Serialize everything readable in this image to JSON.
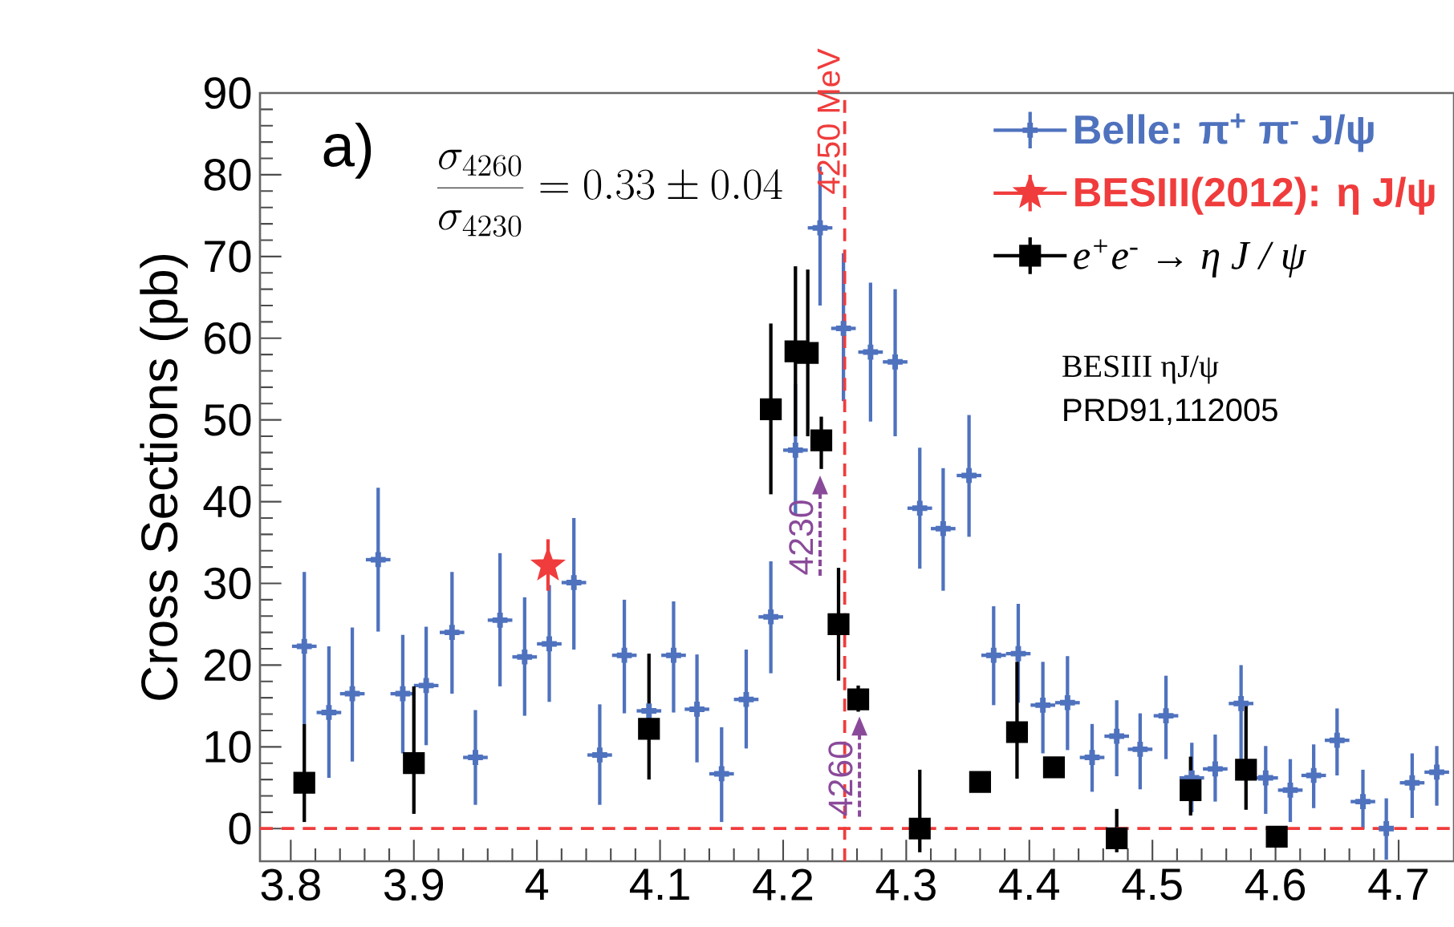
{
  "chart_data": {
    "type": "scatter",
    "ylabel": "Cross Sections (pb)",
    "xlim": [
      3.775,
      4.745
    ],
    "ylim": [
      -4,
      90
    ],
    "xticks": [
      3.8,
      3.9,
      4,
      4.1,
      4.2,
      4.3,
      4.4,
      4.5,
      4.6,
      4.7
    ],
    "yticks": [
      0,
      10,
      20,
      30,
      40,
      50,
      60,
      70,
      80,
      90
    ],
    "legend": "top right",
    "annotations": [
      "a)",
      "\\frac{\\sigma_{4260}}{\\sigma_{4230}}=0.33\\pm 0.04",
      "BESIII ηJ/ψ",
      "PRD91,112005",
      {
        "text": "4230",
        "x": 4.23,
        "y": 43.5
      },
      {
        "text": "4260",
        "x": 4.262,
        "y": 14
      }
    ],
    "ref_lines": [
      {
        "axis": "x",
        "value": 4.25,
        "label": "4250 MeV",
        "color": "#f03c3c",
        "line_style": "dashed"
      },
      {
        "axis": "y",
        "value": 0,
        "color": "#f03c3c",
        "line_style": "dashed"
      }
    ],
    "series": [
      {
        "name": "Belle: π$^{+}$ π$^{-}$ J/ψ",
        "color": "#4f72be",
        "marker": "cross",
        "x": [
          3.811,
          3.831,
          3.85,
          3.871,
          3.891,
          3.91,
          3.931,
          3.95,
          3.97,
          3.99,
          4.01,
          4.03,
          4.051,
          4.071,
          4.091,
          4.111,
          4.13,
          4.15,
          4.17,
          4.19,
          4.21,
          4.23,
          4.249,
          4.271,
          4.291,
          4.311,
          4.33,
          4.351,
          4.371,
          4.391,
          4.411,
          4.431,
          4.451,
          4.471,
          4.49,
          4.511,
          4.532,
          4.551,
          4.572,
          4.592,
          4.612,
          4.631,
          4.65,
          4.671,
          4.69,
          4.711,
          4.731
        ],
        "values": [
          22.3,
          14.2,
          16.5,
          32.9,
          16.5,
          17.5,
          24.0,
          8.7,
          25.5,
          21.0,
          22.6,
          30.1,
          9.0,
          21.2,
          14.4,
          21.2,
          14.6,
          6.7,
          15.8,
          25.9,
          46.3,
          73.5,
          61.2,
          58.3,
          57.1,
          39.2,
          36.7,
          43.2,
          21.2,
          21.4,
          15.1,
          15.4,
          8.7,
          11.3,
          9.7,
          13.8,
          6.2,
          7.3,
          15.3,
          6.2,
          4.7,
          6.5,
          10.8,
          3.3,
          0.0,
          5.6,
          6.9
        ],
        "errors": [
          [
            12.8,
            31.4
          ],
          [
            6.2,
            22.3
          ],
          [
            8.2,
            24.6
          ],
          [
            24.1,
            41.7
          ],
          [
            9.2,
            23.7
          ],
          [
            10.2,
            24.7
          ],
          [
            16.5,
            31.4
          ],
          [
            2.9,
            14.5
          ],
          [
            17.4,
            33.7
          ],
          [
            13.8,
            28.3
          ],
          [
            15.5,
            29.8
          ],
          [
            21.9,
            38.0
          ],
          [
            2.9,
            15.2
          ],
          [
            14.1,
            28.0
          ],
          null,
          [
            14.2,
            27.8
          ],
          [
            8.1,
            21.3
          ],
          [
            0.8,
            12.4
          ],
          [
            9.8,
            21.9
          ],
          [
            19.0,
            32.7
          ],
          [
            38.4,
            54.4
          ],
          [
            64.0,
            81.0
          ],
          [
            52.3,
            70.4
          ],
          [
            49.8,
            66.8
          ],
          [
            48.0,
            66.0
          ],
          [
            31.8,
            46.6
          ],
          [
            29.1,
            44.1
          ],
          [
            35.7,
            50.6
          ],
          [
            15.1,
            27.2
          ],
          [
            15.4,
            27.5
          ],
          [
            9.2,
            20.4
          ],
          [
            9.6,
            21.1
          ],
          [
            4.5,
            12.8
          ],
          [
            6.4,
            15.7
          ],
          [
            4.8,
            14.1
          ],
          [
            8.5,
            18.7
          ],
          [
            2.0,
            10.5
          ],
          [
            3.3,
            11.5
          ],
          [
            8.3,
            20.0
          ],
          [
            1.8,
            10.1
          ],
          [
            0.8,
            8.5
          ],
          [
            2.5,
            10.3
          ],
          [
            6.5,
            14.7
          ],
          [
            -0.1,
            7.2
          ],
          [
            -3.8,
            3.7
          ],
          [
            1.3,
            9.2
          ],
          [
            2.8,
            10.1
          ]
        ],
        "xerrors": [
          0.01,
          0.01,
          0.01,
          0.01,
          0.01,
          0.01,
          0.01,
          0.01,
          0.01,
          0.01,
          0.01,
          0.01,
          0.01,
          0.01,
          0.01,
          0.01,
          0.01,
          0.01,
          0.01,
          0.01,
          0.01,
          0.01,
          0.01,
          0.01,
          0.01,
          0.01,
          0.01,
          0.01,
          0.01,
          0.01,
          0.01,
          0.01,
          0.01,
          0.01,
          0.01,
          0.01,
          0.01,
          0.01,
          0.01,
          0.01,
          0.01,
          0.01,
          0.01,
          0.01,
          null,
          0.01,
          0.01
        ]
      },
      {
        "name": "BESIII(2012): η J/ψ",
        "color": "#f03c3c",
        "marker": "star",
        "x": [
          4.009
        ],
        "values": [
          32.2
        ],
        "errors": [
          [
            29.1,
            35.4
          ]
        ]
      },
      {
        "name": "e$^{+}$e$^{-}$ → η J / ψ",
        "color": "#000000",
        "marker": "square",
        "x": [
          3.811,
          3.9,
          4.091,
          4.19,
          4.21,
          4.22,
          4.231,
          4.245,
          4.261,
          4.311,
          4.36,
          4.39,
          4.42,
          4.471,
          4.531,
          4.576,
          4.601
        ],
        "values": [
          5.6,
          8.0,
          12.2,
          51.3,
          58.4,
          58.2,
          47.5,
          25.0,
          15.8,
          0.0,
          5.7,
          11.8,
          7.5,
          -1.2,
          4.7,
          7.2,
          -1.0
        ],
        "errors": [
          [
            0.8,
            12.8
          ],
          [
            1.8,
            17.4
          ],
          [
            6.0,
            21.4
          ],
          [
            40.9,
            61.8
          ],
          [
            48.0,
            68.8
          ],
          [
            48.0,
            68.4
          ],
          [
            44.0,
            50.4
          ],
          [
            18.1,
            31.9
          ],
          [
            14.3,
            17.5
          ],
          [
            -2.9,
            7.2
          ],
          null,
          [
            6.1,
            20.4
          ],
          null,
          [
            -2.9,
            2.4
          ],
          [
            1.6,
            8.8
          ],
          [
            2.3,
            15.5
          ],
          null
        ]
      }
    ]
  }
}
